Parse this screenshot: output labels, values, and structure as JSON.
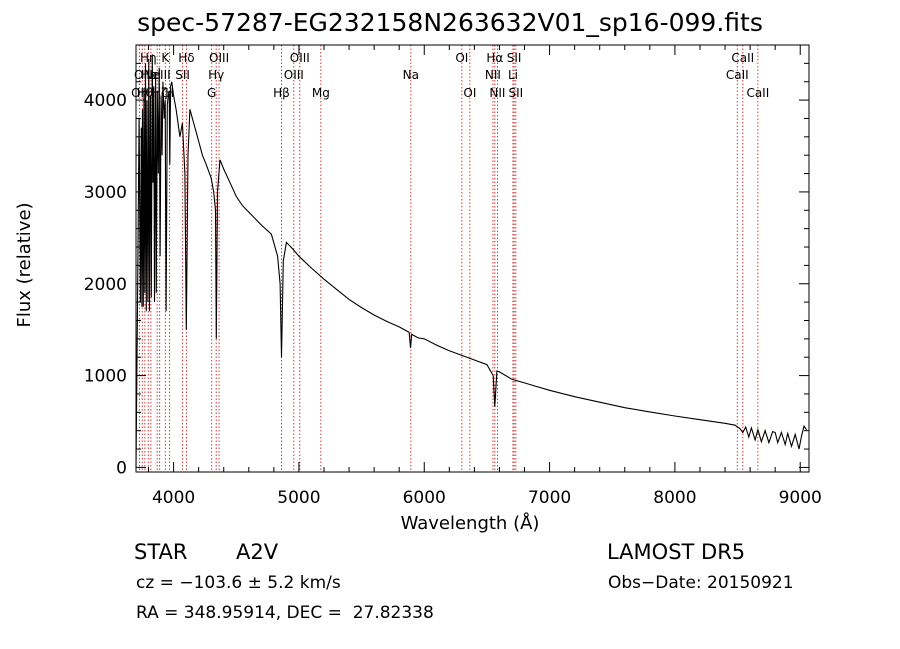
{
  "colors": {
    "line": "#000000",
    "marker": "#cc2222",
    "background": "#ffffff"
  },
  "header": {
    "title": "spec-57287-EG232158N263632V01_sp16-099.fits"
  },
  "info": {
    "class": "STAR",
    "subclass": "A2V",
    "survey": "LAMOST DR5",
    "cz": "cz = −103.6 ± 5.2 km/s",
    "obs_date": "Obs−Date: 20150921",
    "radec": "RA = 348.95914, DEC =  27.82338"
  },
  "chart_data": {
    "type": "line",
    "title": "spec-57287-EG232158N263632V01_sp16-099.fits",
    "xlabel": "Wavelength (Å)",
    "ylabel": "Flux (relative)",
    "xlim": [
      3700,
      9070
    ],
    "ylim": [
      -50,
      4600
    ],
    "xticks": [
      4000,
      5000,
      6000,
      7000,
      8000,
      9000
    ],
    "yticks": [
      0,
      1000,
      2000,
      3000,
      4000
    ],
    "grid": false,
    "legend": "none",
    "series": [
      {
        "x": [
          3700,
          3712,
          3725,
          3735,
          3742,
          3747,
          3752,
          3758,
          3764,
          3770,
          3776,
          3782,
          3788,
          3795,
          3802,
          3808,
          3815,
          3822,
          3830,
          3836,
          3842,
          3848,
          3856,
          3862,
          3870,
          3878,
          3885,
          3892,
          3900,
          3908,
          3915,
          3925,
          3933,
          3940,
          3950,
          3958,
          3965,
          3970,
          3976,
          3985,
          4000,
          4020,
          4050,
          4070,
          4090,
          4101,
          4115,
          4130,
          4150,
          4180,
          4200,
          4230,
          4260,
          4300,
          4320,
          4334,
          4341,
          4350,
          4370,
          4400,
          4450,
          4500,
          4550,
          4600,
          4700,
          4780,
          4830,
          4850,
          4861,
          4875,
          4900,
          4950,
          5000,
          5100,
          5200,
          5300,
          5400,
          5500,
          5600,
          5700,
          5800,
          5880,
          5890,
          5900,
          5950,
          6000,
          6100,
          6200,
          6300,
          6400,
          6500,
          6550,
          6563,
          6580,
          6600,
          6700,
          6800,
          6900,
          7000,
          7200,
          7400,
          7600,
          7800,
          8000,
          8200,
          8400,
          8480,
          8500,
          8520,
          8542,
          8565,
          8590,
          8610,
          8640,
          8662,
          8690,
          8720,
          8750,
          8780,
          8800,
          8820,
          8850,
          8880,
          8900,
          8930,
          8960,
          8990,
          9010,
          9030,
          9050
        ],
        "y": [
          0,
          1750,
          3800,
          1800,
          3700,
          1750,
          3900,
          1750,
          4100,
          1900,
          4400,
          1700,
          4000,
          1800,
          4450,
          1700,
          4050,
          1850,
          4500,
          3100,
          4150,
          1800,
          4300,
          1900,
          4100,
          3200,
          4350,
          2300,
          4050,
          3400,
          4200,
          3800,
          4000,
          1700,
          3950,
          4050,
          4100,
          3300,
          4150,
          4200,
          4050,
          3900,
          3600,
          3750,
          3200,
          1500,
          3400,
          3900,
          3800,
          3650,
          3550,
          3400,
          3300,
          3150,
          3000,
          2800,
          1400,
          3000,
          3350,
          3250,
          3100,
          2950,
          2850,
          2780,
          2640,
          2540,
          2300,
          2000,
          1200,
          2250,
          2450,
          2380,
          2300,
          2170,
          2050,
          1940,
          1830,
          1740,
          1660,
          1590,
          1530,
          1470,
          1300,
          1450,
          1410,
          1400,
          1330,
          1270,
          1220,
          1170,
          1120,
          1000,
          660,
          1050,
          1040,
          960,
          920,
          880,
          840,
          770,
          710,
          650,
          605,
          560,
          520,
          480,
          460,
          440,
          420,
          380,
          440,
          330,
          430,
          300,
          410,
          280,
          400,
          270,
          390,
          380,
          270,
          380,
          250,
          370,
          230,
          360,
          200,
          340,
          450,
          410
        ]
      }
    ],
    "annotations": [
      {
        "x": 3727,
        "label": "OII",
        "row": 3
      },
      {
        "x": 3750,
        "label": "OII",
        "row": 2
      },
      {
        "x": 3771,
        "label": "Hθ",
        "row": 3
      },
      {
        "x": 3798,
        "label": "Hη",
        "row": 1
      },
      {
        "x": 3819,
        "label": "HeI",
        "row": 2
      },
      {
        "x": 3869,
        "label": "NeIII",
        "row": 2
      },
      {
        "x": 3889,
        "label": "Hζ",
        "row": 3
      },
      {
        "x": 3934,
        "label": "K",
        "row": 1
      },
      {
        "x": 3968,
        "label": "H",
        "row": 3
      },
      {
        "x": 4072,
        "label": "SII",
        "row": 2
      },
      {
        "x": 4102,
        "label": "Hδ",
        "row": 1
      },
      {
        "x": 4304,
        "label": "G",
        "row": 3
      },
      {
        "x": 4340,
        "label": "Hγ",
        "row": 2
      },
      {
        "x": 4363,
        "label": "OIII",
        "row": 1
      },
      {
        "x": 4861,
        "label": "Hβ",
        "row": 3
      },
      {
        "x": 4959,
        "label": "OIII",
        "row": 2
      },
      {
        "x": 5007,
        "label": "OIII",
        "row": 1
      },
      {
        "x": 5175,
        "label": "Mg",
        "row": 3
      },
      {
        "x": 5893,
        "label": "Na",
        "row": 2
      },
      {
        "x": 6300,
        "label": "OI",
        "row": 1
      },
      {
        "x": 6364,
        "label": "OI",
        "row": 3
      },
      {
        "x": 6548,
        "label": "NII",
        "row": 2
      },
      {
        "x": 6563,
        "label": "Hα",
        "row": 1
      },
      {
        "x": 6584,
        "label": "NII",
        "row": 3
      },
      {
        "x": 6708,
        "label": "Li",
        "row": 2
      },
      {
        "x": 6717,
        "label": "SII",
        "row": 1
      },
      {
        "x": 6731,
        "label": "SII",
        "row": 3
      },
      {
        "x": 8498,
        "label": "CaII",
        "row": 2
      },
      {
        "x": 8542,
        "label": "CaII",
        "row": 1
      },
      {
        "x": 8662,
        "label": "CaII",
        "row": 3
      }
    ]
  }
}
